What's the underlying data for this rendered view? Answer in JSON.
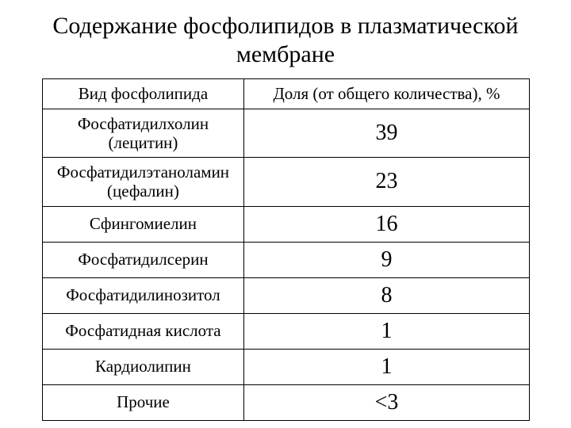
{
  "title": "Содержание фосфолипидов в плазматической мембране",
  "table": {
    "header": {
      "col1": "Вид фосфолипида",
      "col2": "Доля (от общего количества), %"
    },
    "rows": [
      {
        "name": "Фосфатидилхолин (лецитин)",
        "value": "39",
        "multiline": true
      },
      {
        "name": "Фосфатидилэтаноламин (цефалин)",
        "value": "23",
        "multiline": true
      },
      {
        "name": "Сфингомиелин",
        "value": "16",
        "multiline": false
      },
      {
        "name": "Фосфатидилсерин",
        "value": "9",
        "multiline": false
      },
      {
        "name": "Фосфатидилинозитол",
        "value": "8",
        "multiline": false
      },
      {
        "name": "Фосфатидная кислота",
        "value": "1",
        "multiline": false
      },
      {
        "name": "Кардиолипин",
        "value": "1",
        "multiline": false
      },
      {
        "name": "Прочие",
        "value": "<3",
        "multiline": false
      }
    ],
    "styling": {
      "border_color": "#000000",
      "background_color": "#ffffff",
      "text_color": "#000000",
      "title_fontsize": 30,
      "header_fontsize": 21,
      "name_fontsize": 21,
      "value_fontsize": 28,
      "col1_width": 255,
      "col2_width": 360,
      "font_family": "Times New Roman"
    }
  }
}
